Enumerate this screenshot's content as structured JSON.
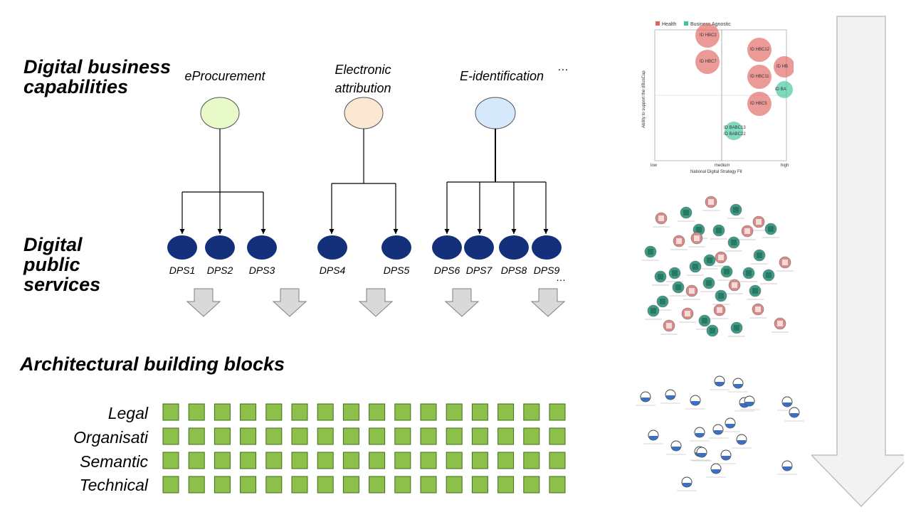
{
  "headings": {
    "capabilities": [
      "Digital business",
      "capabilities"
    ],
    "services": [
      "Digital",
      "public",
      "services"
    ],
    "building_blocks": "Architectural building blocks"
  },
  "capabilities": [
    {
      "lines": [
        "eProcurement"
      ],
      "color": "#e8fac8"
    },
    {
      "lines": [
        "Electronic",
        "attribution"
      ],
      "color": "#fbe8d3"
    },
    {
      "lines": [
        "E-identification"
      ],
      "color": "#d6e9fa"
    }
  ],
  "capabilities_more": "…",
  "services": [
    "DPS1",
    "DPS2",
    "DPS3",
    "DPS4",
    "DPS5",
    "DPS6",
    "DPS7",
    "DPS8",
    "DPS9"
  ],
  "services_more": "…",
  "layers": [
    "Legal",
    "Organisati",
    "Semantic",
    "Technical"
  ],
  "colors": {
    "service": "#14307a",
    "block": "#8cc04b",
    "block_border": "#3f6d1d",
    "arrow": "#d9d9d9"
  },
  "thumbnail_chart": {
    "legend": [
      {
        "name": "Health",
        "color": "#e06460"
      },
      {
        "name": "Business Agnostic",
        "color": "#3ec59c"
      }
    ],
    "xlabel": "National Digital Strategy Fit",
    "ylabel": "Ability to support the dBusCap",
    "xticks": [
      "low",
      "medium",
      "high"
    ],
    "bubbles": [
      "ID HBC2",
      "ID HBC7",
      "ID HBC12",
      "ID HBC11",
      "ID HBC5",
      "ID HB",
      "ID BA",
      "ID BABC13",
      "ID BABC22"
    ]
  }
}
